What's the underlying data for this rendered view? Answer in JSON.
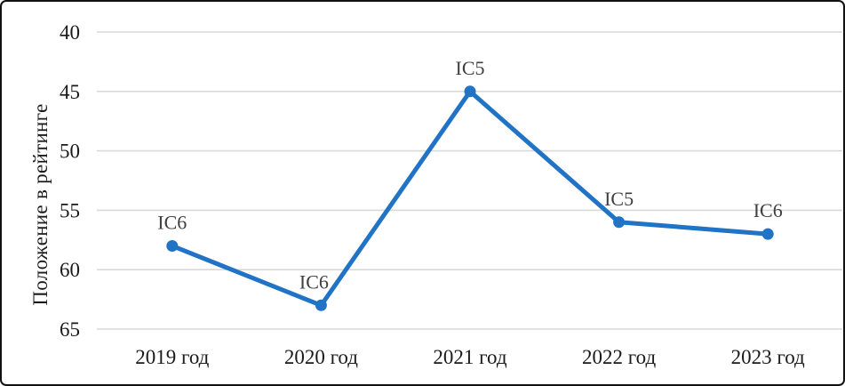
{
  "frame": {
    "background": "#ffffff",
    "border_color": "#111111"
  },
  "chart_data": {
    "type": "line",
    "title": "",
    "xlabel": "",
    "ylabel": "Положение в рейтинге",
    "categories": [
      "2019 год",
      "2020 год",
      "2021 год",
      "2022 год",
      "2023 год"
    ],
    "series": [
      {
        "name": "Положение в рейтинге",
        "values": [
          58,
          63,
          45,
          56,
          57
        ],
        "point_labels": [
          "IC6",
          "IC6",
          "IC5",
          "IC5",
          "IC6"
        ],
        "color": "#2173c5"
      }
    ],
    "y_axis": {
      "min": 40,
      "max": 65,
      "ticks": [
        40,
        45,
        50,
        55,
        60,
        65
      ],
      "inverted": true
    },
    "grid": true,
    "gridline_color": "#d9d9d9",
    "tick_color": "#1a1a1a",
    "point_label_color": "#3f3f3f",
    "legend": "none"
  }
}
